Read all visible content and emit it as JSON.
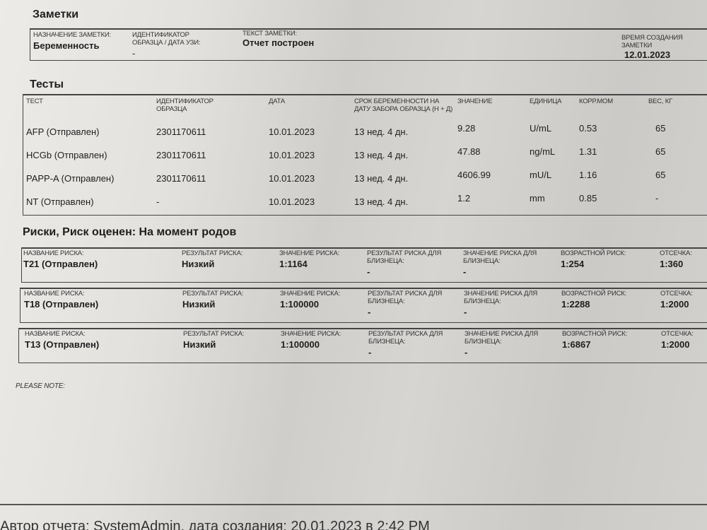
{
  "notes": {
    "title": "Заметки",
    "purpose_label": "НАЗНАЧЕНИЕ ЗАМЕТКИ:",
    "purpose": "Беременность",
    "sample_label": "ИДЕНТИФИКАТОР ОБРАЗЦА / ДАТА УЗИ:",
    "sample": "-",
    "text_label": "ТЕКСТ ЗАМЕТКИ:",
    "text": "Отчет построен",
    "created_label": "ВРЕМЯ СОЗДАНИЯ ЗАМЕТКИ",
    "created": "12.01.2023"
  },
  "tests": {
    "title": "Тесты",
    "headers": [
      "ТЕСТ",
      "ИДЕНТИФИКАТОР ОБРАЗЦА",
      "ДАТА",
      "СРОК БЕРЕМЕННОСТИ НА ДАТУ ЗАБОРА ОБРАЗЦА (Н + Д)",
      "ЗНАЧЕНИЕ",
      "ЕДИНИЦА",
      "КОРР.МОМ",
      "ВЕС, КГ"
    ],
    "rows": [
      [
        "AFP (Отправлен)",
        "2301170611",
        "10.01.2023",
        "13 нед. 4 дн.",
        "9.28",
        "U/mL",
        "0.53",
        "65"
      ],
      [
        "HCGb (Отправлен)",
        "2301170611",
        "10.01.2023",
        "13 нед. 4 дн.",
        "47.88",
        "ng/mL",
        "1.31",
        "65"
      ],
      [
        "PAPP-A (Отправлен)",
        "2301170611",
        "10.01.2023",
        "13 нед. 4 дн.",
        "4606.99",
        "mU/L",
        "1.16",
        "65"
      ],
      [
        "NT (Отправлен)",
        "-",
        "10.01.2023",
        "13 нед. 4 дн.",
        "1.2",
        "mm",
        "0.85",
        "-"
      ]
    ]
  },
  "risks": {
    "title": "Риски, Риск оценен: На момент родов",
    "labels": [
      "НАЗВАНИЕ РИСКА:",
      "РЕЗУЛЬТАТ РИСКА:",
      "ЗНАЧЕНИЕ РИСКА:",
      "РЕЗУЛЬТАТ РИСКА ДЛЯ БЛИЗНЕЦА:",
      "ЗНАЧЕНИЕ РИСКА ДЛЯ БЛИЗНЕЦА:",
      "ВОЗРАСТНОЙ РИСК:",
      "ОТСЕЧКА:"
    ],
    "rows": [
      [
        "T21 (Отправлен)",
        "Низкий",
        "1:1164",
        "-",
        "-",
        "1:254",
        "1:360"
      ],
      [
        "T18 (Отправлен)",
        "Низкий",
        "1:100000",
        "-",
        "-",
        "1:2288",
        "1:2000"
      ],
      [
        "T13 (Отправлен)",
        "Низкий",
        "1:100000",
        "-",
        "-",
        "1:6867",
        "1:2000"
      ]
    ]
  },
  "please_note": "PLEASE NOTE:",
  "footer": "Автор отчета: SystemAdmin, дата создания: 20.01.2023 в 2:42 PM"
}
